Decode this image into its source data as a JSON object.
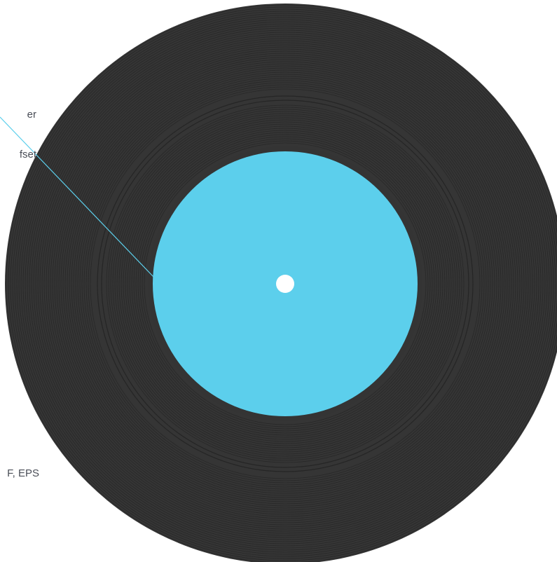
{
  "annotations": {
    "label_callout": {
      "line1": "er",
      "line2": "fset"
    },
    "formats_caption": "F, EPS"
  },
  "colors": {
    "vinyl": "#353535",
    "groove": "#242424",
    "label": "#5ccfec",
    "spindle_hole": "#ffffff",
    "leader_line": "#5ccfec",
    "caption_text": "#4a4e57"
  }
}
